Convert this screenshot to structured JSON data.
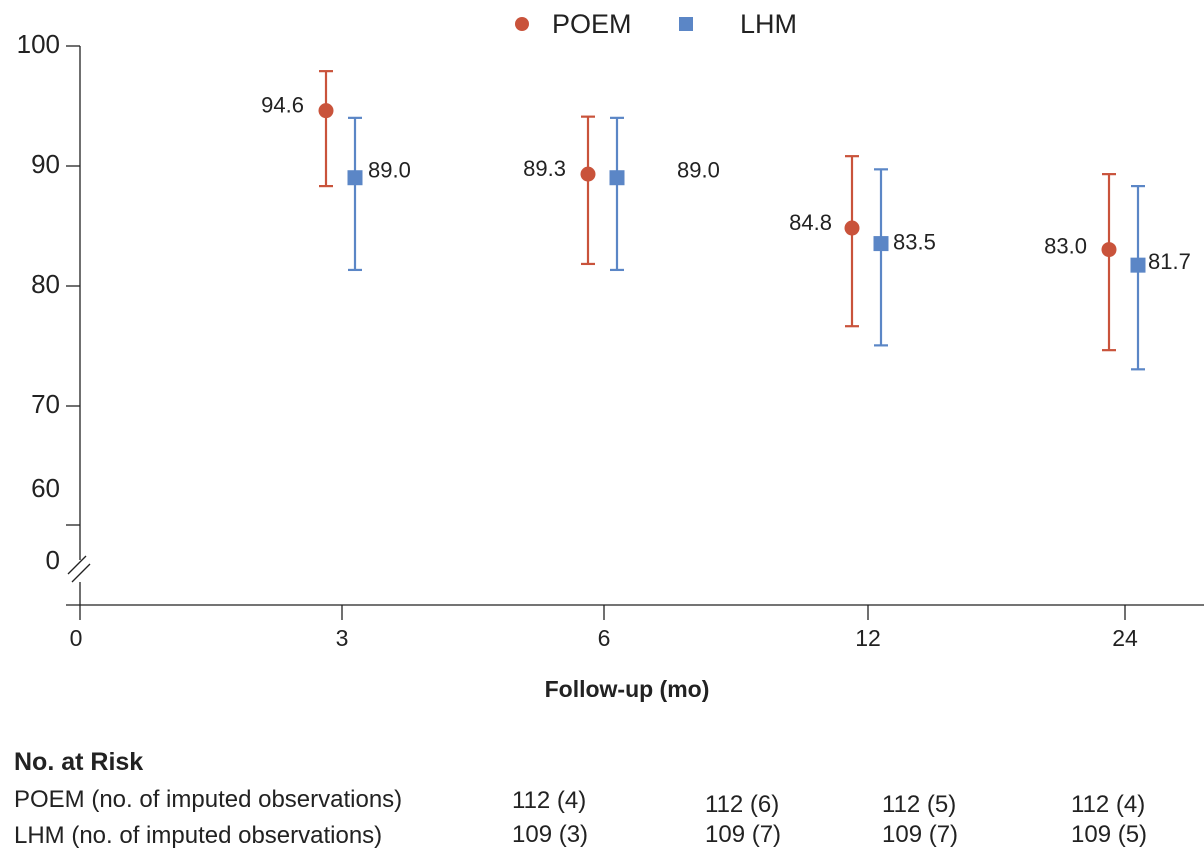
{
  "chart_data": {
    "type": "scatter",
    "xlabel": "Follow-up (mo)",
    "categories": [
      "3",
      "6",
      "12",
      "24"
    ],
    "x_axis_origin_label": "0",
    "y_ticks": [
      "100",
      "90",
      "80",
      "70",
      "60",
      "0"
    ],
    "y_axis_break": true,
    "ylim": [
      60,
      100
    ],
    "grid": false,
    "legend": "top-center",
    "series": [
      {
        "name": "POEM",
        "marker": "circle",
        "color": "#c9533b",
        "values": [
          94.6,
          89.3,
          84.8,
          83.0
        ],
        "labels": [
          "94.6",
          "89.3",
          "84.8",
          "83.0"
        ],
        "ci_low": [
          88.3,
          81.8,
          76.6,
          74.6
        ],
        "ci_high": [
          97.9,
          94.1,
          90.8,
          89.3
        ]
      },
      {
        "name": "LHM",
        "marker": "square",
        "color": "#5b86c6",
        "values": [
          89.0,
          89.0,
          83.5,
          81.7
        ],
        "labels": [
          "89.0",
          "89.0",
          "83.5",
          "81.7"
        ],
        "ci_low": [
          81.3,
          81.3,
          75.0,
          73.0
        ],
        "ci_high": [
          94.0,
          94.0,
          89.7,
          88.3
        ]
      }
    ]
  },
  "risk_table": {
    "title": "No. at Risk",
    "rows": [
      {
        "label": "POEM (no. of imputed observations)",
        "cells": [
          "112 (4)",
          "112 (6)",
          "112 (5)",
          "112 (4)"
        ]
      },
      {
        "label": "LHM (no. of imputed observations)",
        "cells": [
          "109 (3)",
          "109 (7)",
          "109 (7)",
          "109 (5)"
        ]
      }
    ]
  }
}
